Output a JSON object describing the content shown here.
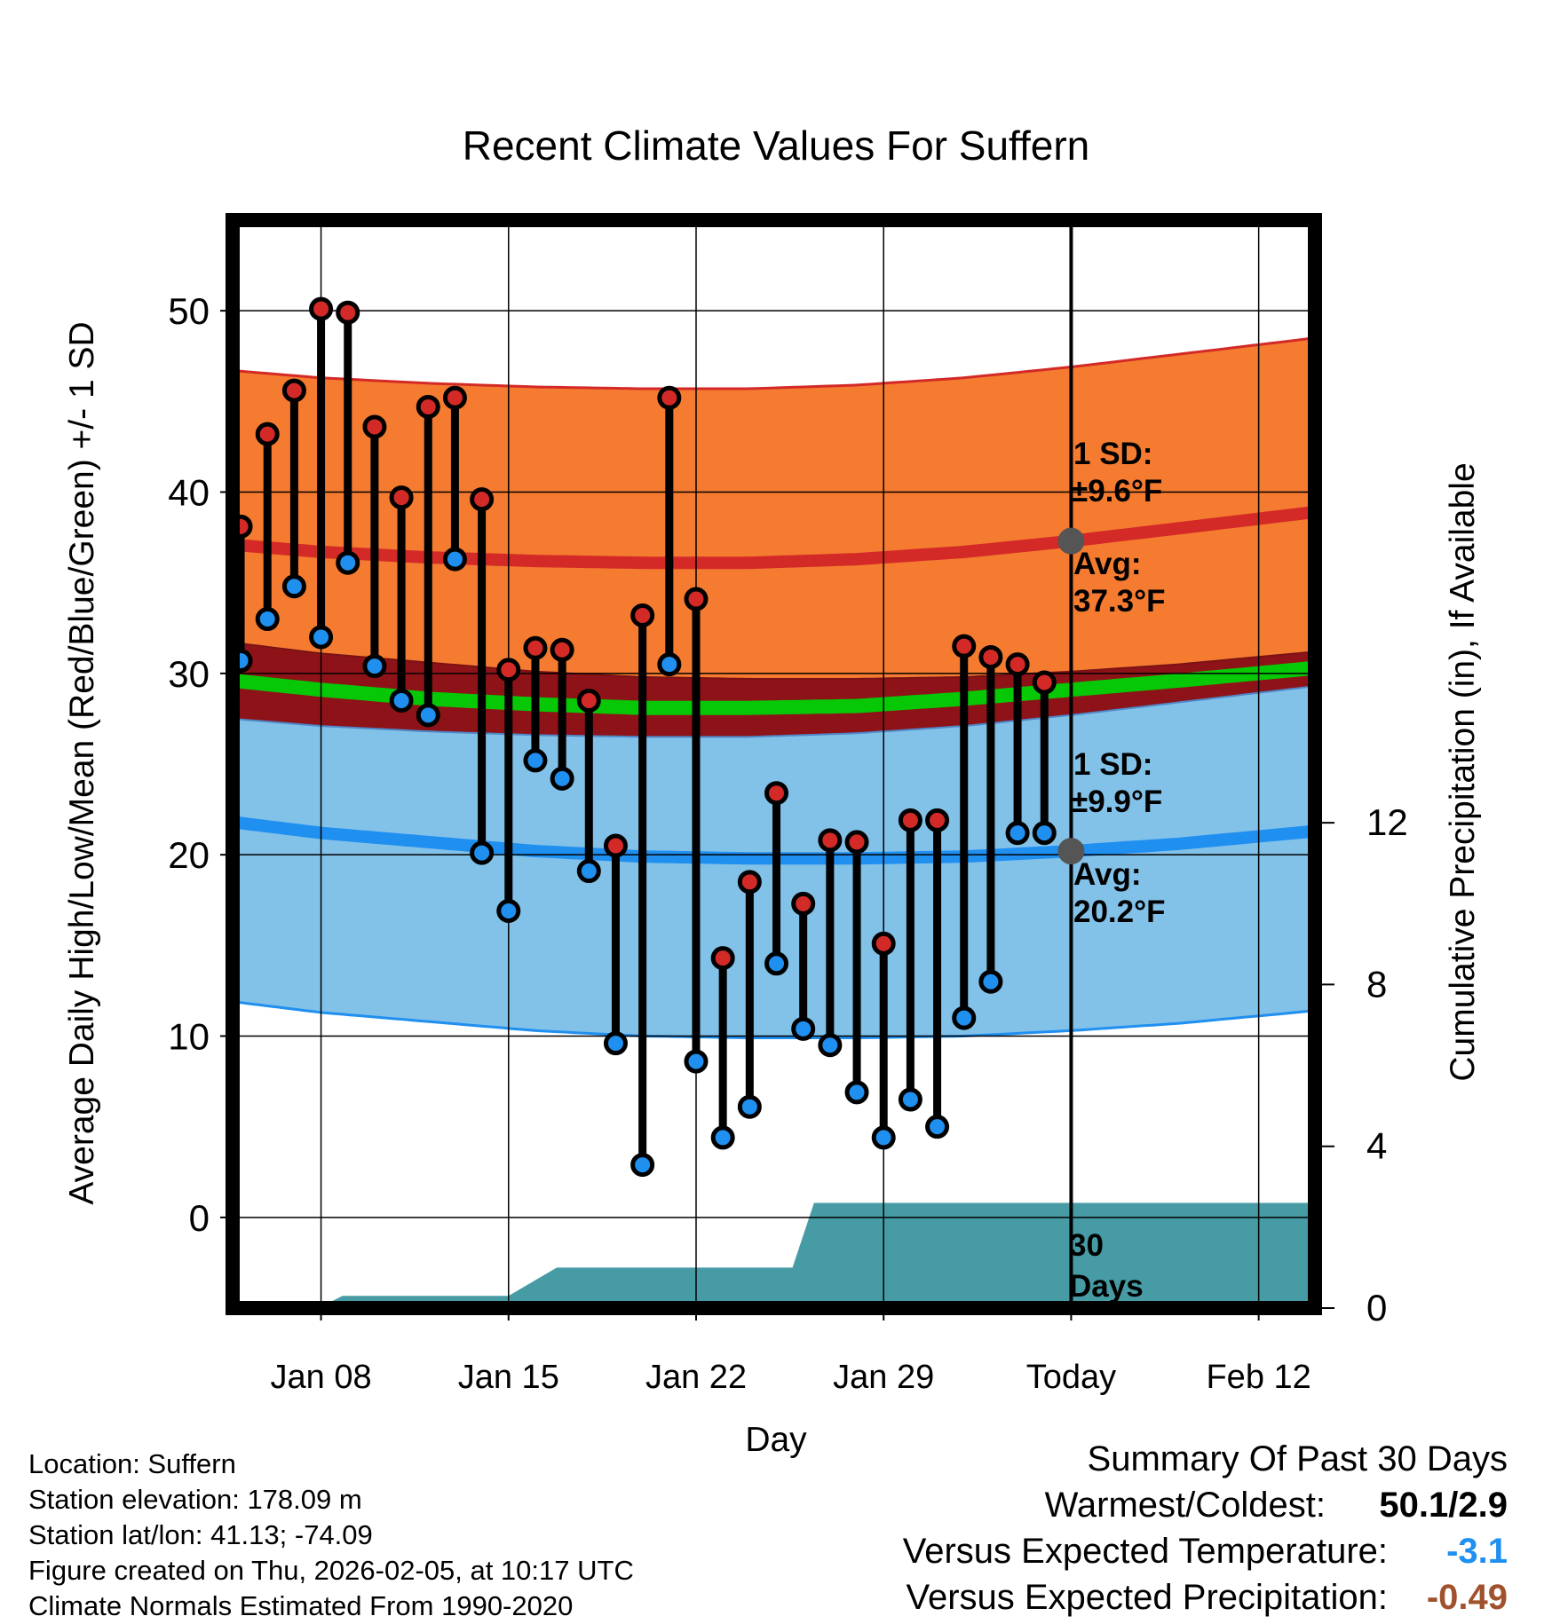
{
  "chart_data": {
    "type": "line",
    "title": "Recent Climate Values For Suffern",
    "xlabel": "Day",
    "ylabel": "Average Daily High/Low/Mean (Red/Blue/Green) +/- 1 SD",
    "ylabel_right": "Cumulative Precipitation (in), If Available",
    "x_tick_labels": [
      "Jan 08",
      "Jan 15",
      "Jan 22",
      "Jan 29",
      "Today",
      "Feb 12"
    ],
    "x_tick_days": [
      8,
      15,
      22,
      29,
      36,
      43
    ],
    "xlim": [
      4.7,
      45.1
    ],
    "ylim": [
      -5,
      55
    ],
    "y_ticks": [
      0,
      10,
      20,
      30,
      40,
      50
    ],
    "y2lim": [
      0,
      26.9
    ],
    "y2_ticks": [
      0,
      4,
      8,
      12
    ],
    "today_day": 36,
    "days": [
      5,
      6,
      7,
      8,
      9,
      10,
      11,
      12,
      13,
      14,
      15,
      16,
      17,
      18,
      19,
      20,
      21,
      22,
      23,
      24,
      25,
      26,
      27,
      28,
      29,
      30,
      31,
      32,
      33,
      34,
      35
    ],
    "daily_high": [
      38.1,
      43.2,
      45.6,
      50.1,
      49.9,
      43.6,
      39.7,
      44.7,
      45.2,
      39.6,
      30.2,
      31.4,
      31.3,
      28.5,
      20.5,
      33.2,
      45.2,
      34.1,
      14.3,
      18.5,
      23.4,
      17.3,
      20.8,
      20.7,
      15.1,
      21.9,
      21.9,
      31.5,
      30.9,
      30.5,
      29.5
    ],
    "daily_low": [
      30.7,
      33.0,
      34.8,
      32.0,
      36.1,
      30.4,
      28.5,
      27.7,
      36.3,
      20.1,
      16.9,
      25.2,
      24.2,
      19.1,
      9.6,
      2.9,
      30.5,
      8.6,
      4.4,
      6.1,
      14.0,
      10.4,
      9.5,
      6.9,
      4.4,
      6.5,
      5.0,
      11.0,
      13.0,
      21.2,
      21.2
    ],
    "normal_days": [
      4.7,
      8,
      12,
      16,
      20,
      24,
      28,
      32,
      36,
      40,
      45.1
    ],
    "normal_high": [
      37.1,
      36.7,
      36.4,
      36.2,
      36.1,
      36.1,
      36.3,
      36.7,
      37.3,
      38.0,
      38.9
    ],
    "normal_low": [
      21.8,
      21.2,
      20.7,
      20.2,
      19.9,
      19.8,
      19.8,
      19.9,
      20.2,
      20.6,
      21.3
    ],
    "normal_mean": [
      29.6,
      29.1,
      28.6,
      28.3,
      28.1,
      28.1,
      28.2,
      28.6,
      29.1,
      29.6,
      30.3
    ],
    "sd_high": 9.6,
    "sd_low": 9.9,
    "precip_days": [
      7.9,
      8.8,
      15.0,
      16.8,
      20.4,
      25.6,
      26.4,
      45.1
    ],
    "precip_cum": [
      0.0,
      0.3,
      0.3,
      1.0,
      1.0,
      1.0,
      2.6,
      2.6
    ],
    "annotations": {
      "high_sd_label": "1 SD:",
      "high_sd_value": "±9.6°F",
      "high_avg_label": "Avg:",
      "high_avg_value": "37.3°F",
      "low_sd_label": "1 SD:",
      "low_sd_value": "±9.9°F",
      "low_avg_label": "Avg:",
      "low_avg_value": "20.2°F",
      "days_count": "30",
      "days_word": "Days"
    },
    "colors": {
      "high_band": "#f47b30",
      "high_line": "#d42a27",
      "low_band": "#82c1e8",
      "low_line": "#1f8ff0",
      "overlap": "#8d1318",
      "mean_line": "#06c806",
      "precip": "#469ba5",
      "high_marker": "#d42a27",
      "low_marker": "#1f8ff0",
      "today_marker": "#555555",
      "annotation_text": "#555555"
    }
  },
  "footer": {
    "location": "Location: Suffern",
    "elevation": "Station elevation: 178.09 m",
    "latlon": "Station lat/lon: 41.13; -74.09",
    "created": "Figure created on Thu, 2026-02-05, at 10:17 UTC",
    "normals": "Climate Normals Estimated From 1990-2020"
  },
  "summary": {
    "title": "Summary Of Past 30 Days",
    "warmest_coldest_label": "Warmest/Coldest:",
    "warmest_coldest_value": "50.1/2.9",
    "temp_label": "Versus Expected Temperature:",
    "temp_value": "-3.1",
    "temp_color": "#1f8ff0",
    "precip_label": "Versus Expected Precipitation:",
    "precip_value": "-0.49",
    "precip_color": "#a0522d"
  }
}
